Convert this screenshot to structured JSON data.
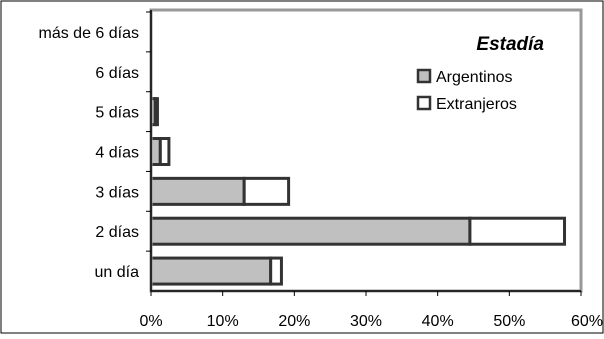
{
  "chart_data": {
    "type": "bar",
    "orientation": "horizontal",
    "stacked": true,
    "categories": [
      "más de 6 días",
      "6 días",
      "5 días",
      "4 días",
      "3 días",
      "2 días",
      "un día"
    ],
    "series": [
      {
        "name": "Argentinos",
        "values": [
          0,
          0,
          0.6,
          1.3,
          13.0,
          44.5,
          16.7
        ],
        "color": "#c0c0c0"
      },
      {
        "name": "Extranjeros",
        "values": [
          0,
          0,
          0.3,
          1.2,
          6.2,
          13.2,
          1.5
        ],
        "color": "#ffffff"
      }
    ],
    "xlim": [
      0,
      60
    ],
    "xticks": [
      "0%",
      "10%",
      "20%",
      "30%",
      "40%",
      "50%",
      "60%"
    ],
    "legend": {
      "title": "Estadía",
      "placement": "top-right"
    },
    "grid": false
  }
}
